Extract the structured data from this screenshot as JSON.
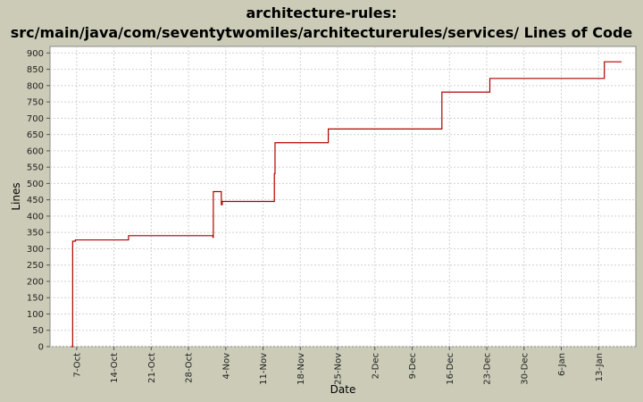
{
  "chart_data": {
    "type": "line",
    "title_lines": [
      "architecture-rules:",
      "src/main/java/com/seventytwomiles/architecturerules/services/ Lines of Code"
    ],
    "xlabel": "Date",
    "ylabel": "Lines",
    "ylim": [
      0,
      920
    ],
    "y_ticks": [
      0,
      50,
      100,
      150,
      200,
      250,
      300,
      350,
      400,
      450,
      500,
      550,
      600,
      650,
      700,
      750,
      800,
      850,
      900
    ],
    "x_range": [
      "2007-10-02",
      "2008-01-20"
    ],
    "x_ticks": [
      {
        "label": "7-Oct",
        "date": "2007-10-07"
      },
      {
        "label": "14-Oct",
        "date": "2007-10-14"
      },
      {
        "label": "21-Oct",
        "date": "2007-10-21"
      },
      {
        "label": "28-Oct",
        "date": "2007-10-28"
      },
      {
        "label": "4-Nov",
        "date": "2007-11-04"
      },
      {
        "label": "11-Nov",
        "date": "2007-11-11"
      },
      {
        "label": "18-Nov",
        "date": "2007-11-18"
      },
      {
        "label": "25-Nov",
        "date": "2007-11-25"
      },
      {
        "label": "2-Dec",
        "date": "2007-12-02"
      },
      {
        "label": "9-Dec",
        "date": "2007-12-09"
      },
      {
        "label": "16-Dec",
        "date": "2007-12-16"
      },
      {
        "label": "23-Dec",
        "date": "2007-12-23"
      },
      {
        "label": "30-Dec",
        "date": "2007-12-30"
      },
      {
        "label": "6-Jan",
        "date": "2008-01-06"
      },
      {
        "label": "13-Jan",
        "date": "2008-01-13"
      }
    ],
    "grid": true,
    "series": [
      {
        "color": "#b00000",
        "step": true,
        "points": [
          [
            "2007-10-06T00:00",
            0
          ],
          [
            "2007-10-06T06:00",
            323
          ],
          [
            "2007-10-06T12:00",
            323
          ],
          [
            "2007-10-06T18:00",
            327
          ],
          [
            "2007-10-16T12:00",
            327
          ],
          [
            "2007-10-16T18:00",
            340
          ],
          [
            "2007-11-01T12:00",
            340
          ],
          [
            "2007-11-01T14:00",
            335
          ],
          [
            "2007-11-01T16:00",
            475
          ],
          [
            "2007-11-03T02:00",
            475
          ],
          [
            "2007-11-03T04:00",
            435
          ],
          [
            "2007-11-03T08:00",
            445
          ],
          [
            "2007-11-13T00:00",
            445
          ],
          [
            "2007-11-13T03:00",
            530
          ],
          [
            "2007-11-13T06:00",
            625
          ],
          [
            "2007-11-23T04:00",
            625
          ],
          [
            "2007-11-23T06:00",
            667
          ],
          [
            "2007-12-14T12:00",
            667
          ],
          [
            "2007-12-14T14:00",
            780
          ],
          [
            "2007-12-23T12:00",
            780
          ],
          [
            "2007-12-23T14:00",
            822
          ],
          [
            "2008-01-14T00:00",
            822
          ],
          [
            "2008-01-14T02:00",
            873
          ],
          [
            "2008-01-17T08:00",
            873
          ]
        ]
      }
    ]
  }
}
